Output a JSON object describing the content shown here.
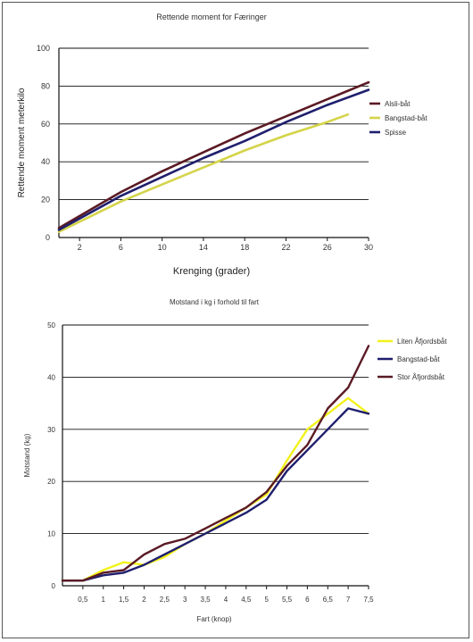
{
  "chart_data": [
    {
      "type": "line",
      "title": "Rettende moment for Færinger",
      "xlabel": "Krenging (grader)",
      "ylabel": "Rettende moment meterkilo",
      "xlim": [
        0,
        30
      ],
      "ylim": [
        0,
        100
      ],
      "x_ticks": [
        "2",
        "6",
        "10",
        "14",
        "18",
        "22",
        "26",
        "30"
      ],
      "x_tick_values": [
        2,
        6,
        10,
        14,
        18,
        22,
        26,
        30
      ],
      "y_ticks": [
        "0",
        "20",
        "40",
        "60",
        "80",
        "100"
      ],
      "y_tick_values": [
        0,
        20,
        40,
        60,
        80,
        100
      ],
      "grid": "horizontal",
      "legend_position": "right",
      "series": [
        {
          "name": "Alsli-båt",
          "color": "#5a1a24",
          "x": [
            0,
            6,
            10,
            14,
            18,
            22,
            26,
            30
          ],
          "y": [
            5,
            24,
            35,
            45,
            55,
            64,
            73,
            82
          ]
        },
        {
          "name": "Bangstad-båt",
          "color": "#d4d44a",
          "x": [
            0,
            6,
            10,
            14,
            18,
            22,
            26,
            28
          ],
          "y": [
            3,
            19,
            28,
            37,
            46,
            54,
            61,
            65
          ]
        },
        {
          "name": "Spisse",
          "color": "#1f1f6e",
          "x": [
            0,
            6,
            10,
            14,
            18,
            22,
            26,
            30
          ],
          "y": [
            4,
            22,
            32,
            42,
            51,
            61,
            70,
            78
          ]
        }
      ]
    },
    {
      "type": "line",
      "title": "Motstand i kg i forhold til fart",
      "xlabel": "Fart (knop)",
      "ylabel": "Motstand (kg)",
      "xlim": [
        0,
        7.5
      ],
      "ylim": [
        0,
        50
      ],
      "x_ticks": [
        "0,5",
        "1",
        "1,5",
        "2",
        "2,5",
        "3",
        "3,5",
        "4",
        "4,5",
        "5",
        "5,5",
        "6",
        "6,5",
        "7",
        "7,5"
      ],
      "x_tick_values": [
        0.5,
        1,
        1.5,
        2,
        2.5,
        3,
        3.5,
        4,
        4.5,
        5,
        5.5,
        6,
        6.5,
        7,
        7.5
      ],
      "y_ticks": [
        "0",
        "10",
        "20",
        "30",
        "40",
        "50"
      ],
      "y_tick_values": [
        0,
        10,
        20,
        30,
        40,
        50
      ],
      "grid": "horizontal",
      "legend_position": "top-right",
      "series": [
        {
          "name": "Liten Åfjordsbåt",
          "color": "#f2f21a",
          "x": [
            0,
            0.5,
            1,
            1.5,
            2,
            2.5,
            3,
            3.5,
            4,
            4.5,
            5,
            5.5,
            6,
            6.5,
            7,
            7.5
          ],
          "y": [
            1,
            1,
            3,
            4.5,
            4,
            5.5,
            8,
            10,
            12.5,
            15,
            17.5,
            24,
            30,
            33,
            36,
            33
          ]
        },
        {
          "name": "Bangstad-båt",
          "color": "#1f1f6e",
          "x": [
            0,
            0.5,
            1,
            1.5,
            2,
            2.5,
            3,
            3.5,
            4,
            4.5,
            5,
            5.5,
            6,
            6.5,
            7,
            7.5
          ],
          "y": [
            1,
            1,
            2,
            2.5,
            4,
            6,
            8,
            10,
            12,
            14,
            16.5,
            22,
            26,
            30,
            34,
            33
          ]
        },
        {
          "name": "Stor Åfjordsbåt",
          "color": "#5a1a24",
          "x": [
            0,
            0.5,
            1,
            1.5,
            2,
            2.5,
            3,
            3.5,
            4,
            4.5,
            5,
            5.5,
            6,
            6.5,
            7,
            7.5
          ],
          "y": [
            1,
            1,
            2.5,
            3,
            6,
            8,
            9,
            11,
            13,
            15,
            18,
            23,
            27,
            34,
            38,
            46
          ]
        }
      ]
    }
  ]
}
